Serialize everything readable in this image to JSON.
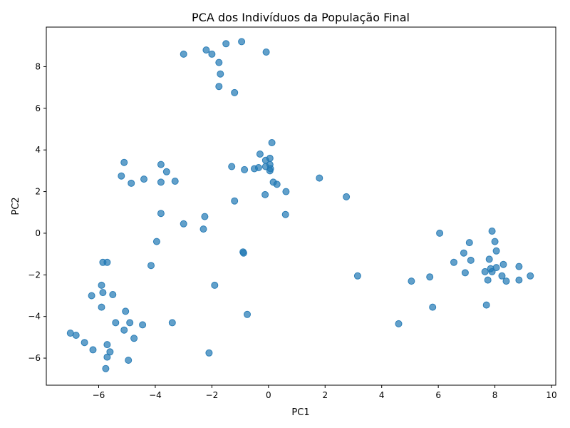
{
  "chart_data": {
    "type": "scatter",
    "title": "PCA dos Indivíduos da População Final",
    "xlabel": "PC1",
    "ylabel": "PC2",
    "xlim": [
      -7.85,
      10.15
    ],
    "ylim": [
      -7.3,
      9.9
    ],
    "xticks": [
      -6,
      -4,
      -2,
      0,
      2,
      4,
      6,
      8,
      10
    ],
    "yticks": [
      -6,
      -4,
      -2,
      0,
      2,
      4,
      6,
      8
    ],
    "grid": false,
    "marker_color": "#1f77b4",
    "marker_alpha": 0.7,
    "points": [
      {
        "x": -3.0,
        "y": 8.6
      },
      {
        "x": -2.2,
        "y": 8.8
      },
      {
        "x": -2.0,
        "y": 8.6
      },
      {
        "x": -1.5,
        "y": 9.1
      },
      {
        "x": -0.95,
        "y": 9.2
      },
      {
        "x": -0.08,
        "y": 8.7
      },
      {
        "x": -1.75,
        "y": 8.2
      },
      {
        "x": -1.7,
        "y": 7.65
      },
      {
        "x": -1.75,
        "y": 7.05
      },
      {
        "x": -1.2,
        "y": 6.75
      },
      {
        "x": 0.12,
        "y": 4.35
      },
      {
        "x": -0.3,
        "y": 3.8
      },
      {
        "x": 0.05,
        "y": 3.6
      },
      {
        "x": -0.1,
        "y": 3.5
      },
      {
        "x": 0.05,
        "y": 3.3
      },
      {
        "x": -0.1,
        "y": 3.2
      },
      {
        "x": -0.35,
        "y": 3.15
      },
      {
        "x": -0.5,
        "y": 3.1
      },
      {
        "x": -0.85,
        "y": 3.05
      },
      {
        "x": 0.07,
        "y": 3.1
      },
      {
        "x": 0.05,
        "y": 3.0
      },
      {
        "x": -1.3,
        "y": 3.2
      },
      {
        "x": 0.17,
        "y": 2.45
      },
      {
        "x": 0.3,
        "y": 2.35
      },
      {
        "x": 0.62,
        "y": 2.0
      },
      {
        "x": -0.12,
        "y": 1.85
      },
      {
        "x": 1.8,
        "y": 2.65
      },
      {
        "x": 2.75,
        "y": 1.75
      },
      {
        "x": -1.2,
        "y": 1.55
      },
      {
        "x": 0.6,
        "y": 0.9
      },
      {
        "x": -5.1,
        "y": 3.4
      },
      {
        "x": -5.2,
        "y": 2.75
      },
      {
        "x": -4.85,
        "y": 2.4
      },
      {
        "x": -4.4,
        "y": 2.6
      },
      {
        "x": -3.8,
        "y": 3.3
      },
      {
        "x": -3.6,
        "y": 2.95
      },
      {
        "x": -3.8,
        "y": 2.45
      },
      {
        "x": -3.3,
        "y": 2.5
      },
      {
        "x": -3.8,
        "y": 0.95
      },
      {
        "x": -3.0,
        "y": 0.45
      },
      {
        "x": -2.25,
        "y": 0.8
      },
      {
        "x": -2.3,
        "y": 0.2
      },
      {
        "x": -3.95,
        "y": -0.4
      },
      {
        "x": -4.15,
        "y": -1.55
      },
      {
        "x": -0.9,
        "y": -0.9
      },
      {
        "x": -0.88,
        "y": -0.95
      },
      {
        "x": -1.9,
        "y": -2.5
      },
      {
        "x": -0.75,
        "y": -3.9
      },
      {
        "x": -3.4,
        "y": -4.3
      },
      {
        "x": -2.1,
        "y": -5.75
      },
      {
        "x": -5.85,
        "y": -1.4
      },
      {
        "x": -5.7,
        "y": -1.4
      },
      {
        "x": -5.9,
        "y": -2.5
      },
      {
        "x": -6.25,
        "y": -3.0
      },
      {
        "x": -5.85,
        "y": -2.85
      },
      {
        "x": -5.5,
        "y": -2.95
      },
      {
        "x": -5.9,
        "y": -3.55
      },
      {
        "x": -5.05,
        "y": -3.75
      },
      {
        "x": -5.4,
        "y": -4.3
      },
      {
        "x": -4.9,
        "y": -4.3
      },
      {
        "x": -5.1,
        "y": -4.65
      },
      {
        "x": -4.45,
        "y": -4.4
      },
      {
        "x": -4.75,
        "y": -5.05
      },
      {
        "x": -7.0,
        "y": -4.8
      },
      {
        "x": -6.8,
        "y": -4.9
      },
      {
        "x": -6.5,
        "y": -5.25
      },
      {
        "x": -5.7,
        "y": -5.35
      },
      {
        "x": -6.2,
        "y": -5.6
      },
      {
        "x": -5.6,
        "y": -5.7
      },
      {
        "x": -5.7,
        "y": -5.95
      },
      {
        "x": -4.95,
        "y": -6.1
      },
      {
        "x": -5.75,
        "y": -6.5
      },
      {
        "x": 6.05,
        "y": 0.0
      },
      {
        "x": 7.9,
        "y": 0.1
      },
      {
        "x": 7.1,
        "y": -0.45
      },
      {
        "x": 8.0,
        "y": -0.4
      },
      {
        "x": 6.9,
        "y": -0.95
      },
      {
        "x": 8.05,
        "y": -0.85
      },
      {
        "x": 7.15,
        "y": -1.3
      },
      {
        "x": 6.55,
        "y": -1.4
      },
      {
        "x": 7.8,
        "y": -1.25
      },
      {
        "x": 8.3,
        "y": -1.5
      },
      {
        "x": 8.85,
        "y": -1.6
      },
      {
        "x": 8.05,
        "y": -1.65
      },
      {
        "x": 7.85,
        "y": -1.7
      },
      {
        "x": 7.65,
        "y": -1.85
      },
      {
        "x": 6.95,
        "y": -1.9
      },
      {
        "x": 7.9,
        "y": -1.85
      },
      {
        "x": 8.25,
        "y": -2.05
      },
      {
        "x": 9.25,
        "y": -2.05
      },
      {
        "x": 7.75,
        "y": -2.25
      },
      {
        "x": 8.4,
        "y": -2.3
      },
      {
        "x": 8.85,
        "y": -2.25
      },
      {
        "x": 7.7,
        "y": -3.45
      },
      {
        "x": 5.7,
        "y": -2.1
      },
      {
        "x": 5.05,
        "y": -2.3
      },
      {
        "x": 3.15,
        "y": -2.05
      },
      {
        "x": 5.8,
        "y": -3.55
      },
      {
        "x": 4.6,
        "y": -4.35
      }
    ]
  }
}
